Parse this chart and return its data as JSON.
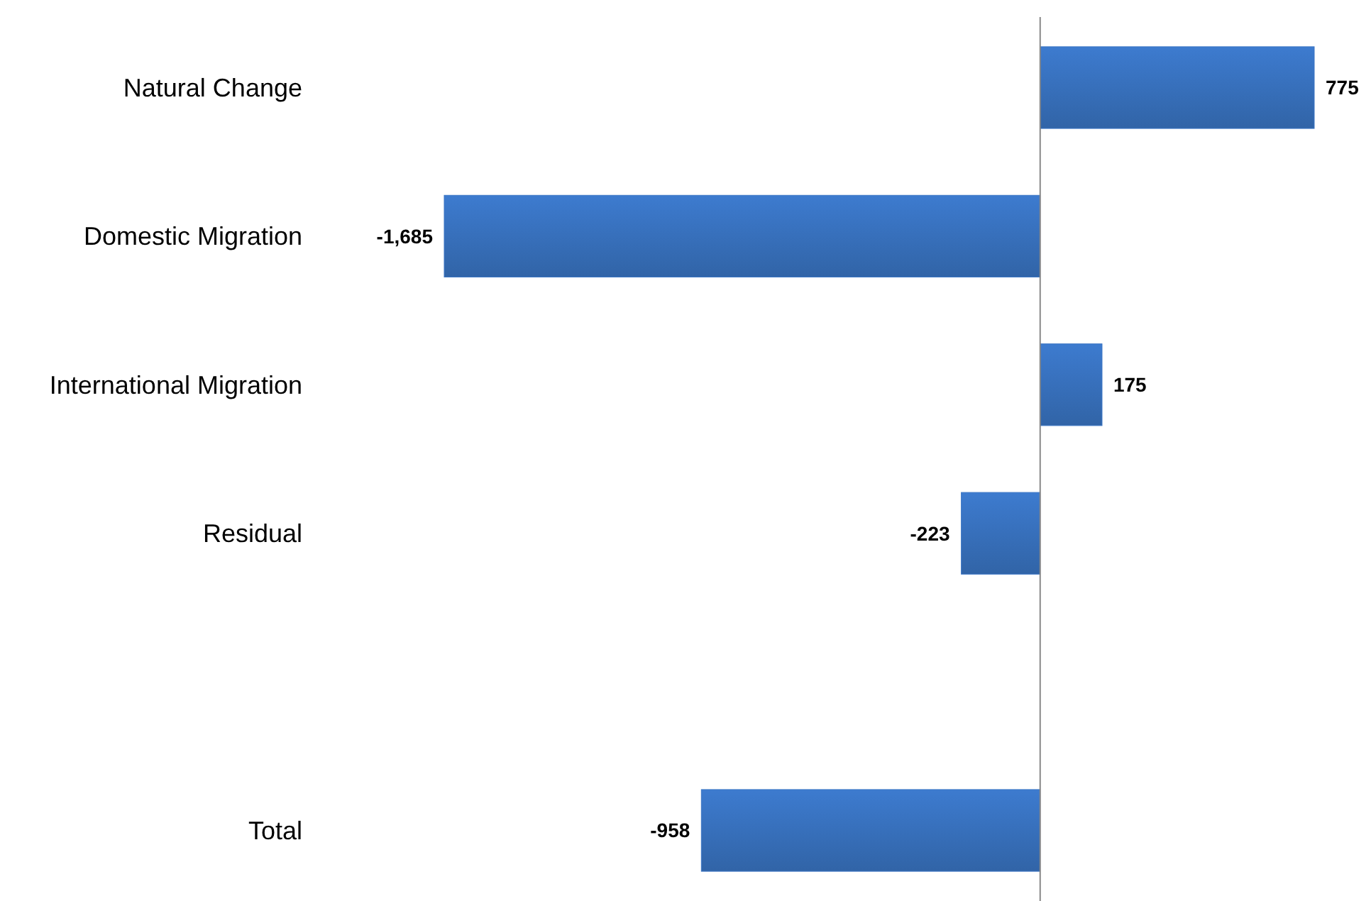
{
  "chart_data": {
    "type": "bar",
    "orientation": "horizontal",
    "categories": [
      "Natural Change",
      "Domestic Migration",
      "International Migration",
      "Residual",
      null,
      "Total"
    ],
    "values": [
      775,
      -1685,
      175,
      -223,
      null,
      -958
    ],
    "value_labels": [
      "775",
      "-1,685",
      "175",
      "-223",
      null,
      "-958"
    ],
    "color": "#3a75c4"
  }
}
